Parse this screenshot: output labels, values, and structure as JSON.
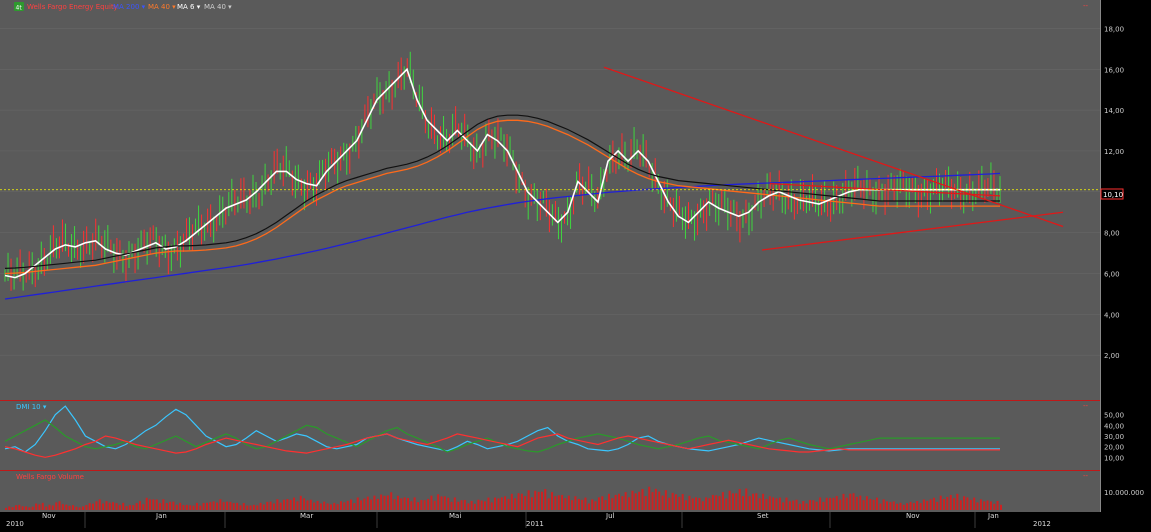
{
  "header": {
    "symbol_icon": "chart-symbol-icon",
    "symbol_text": "4t",
    "title": "Wells Fargo Energy Equity",
    "ma_labels": [
      {
        "label": "MA 200 ▾",
        "color": "#3a55ff"
      },
      {
        "label": "MA 40 ▾",
        "color": "#ff7a2a"
      },
      {
        "label": "MA 6 ▾",
        "color": "#ffffff"
      },
      {
        "label": "MA 40 ▾",
        "color": "#cfcfcf"
      }
    ],
    "corner_marker": "--"
  },
  "dmi_panel": {
    "label": "DMI 10 ▾",
    "corner_marker": "--"
  },
  "volume_panel": {
    "label": "Wells Fargo Volume",
    "corner_marker": "--"
  },
  "price_marker": "10,10",
  "colors": {
    "price_panel_bg": "#5a5a5a",
    "grid": "#6a6a6a",
    "up_bar": "#3fd63f",
    "down_bar": "#ff3030",
    "ma200": "#2020d8",
    "ma40_orange": "#ff6a1a",
    "ma40_black": "#111111",
    "ma6": "#ffffff",
    "trendline": "#e01818",
    "price_line": "#ffff00",
    "dmi_plus": "#2a9a2a",
    "dmi_minus": "#ff3030",
    "adx": "#3ac6ff",
    "volume": "#cc2222",
    "separator": "#c01818"
  },
  "chart_data": [
    {
      "type": "line",
      "title": "Wells Fargo Energy Equity",
      "xlabel": "",
      "ylabel": "",
      "x_labels": [
        "Nov",
        "Jan",
        "Mar",
        "Mai",
        "Jul",
        "Set",
        "Nov",
        "Jan"
      ],
      "year_labels": [
        "2010",
        "2011",
        "2012"
      ],
      "y_ticks": [
        "2,00",
        "4,00",
        "6,00",
        "8,00",
        "10,00",
        "12,00",
        "14,00",
        "16,00",
        "18,00"
      ],
      "ylim": [
        0,
        19
      ],
      "last_price": 10.1,
      "x": [
        0,
        10,
        20,
        30,
        40,
        50,
        60,
        70,
        80,
        90,
        100,
        110,
        120,
        130,
        140,
        150,
        160,
        170,
        180,
        190,
        200,
        210,
        220,
        230,
        240,
        250,
        260,
        270,
        280,
        290,
        300,
        310,
        320,
        330,
        340,
        350,
        360,
        370,
        380,
        390,
        400,
        410,
        420,
        430,
        440,
        450,
        460,
        470,
        480,
        490,
        500,
        510,
        520,
        530,
        540,
        550,
        560,
        570,
        580,
        590,
        600,
        610,
        620,
        630,
        640,
        650,
        660,
        670,
        680,
        690,
        700,
        710,
        720,
        730,
        740,
        750,
        760,
        770,
        780,
        790,
        800,
        810,
        820,
        830,
        840,
        850,
        860,
        870,
        880,
        890,
        900,
        910,
        920,
        930,
        940,
        950,
        960,
        970,
        980,
        990
      ],
      "series": [
        {
          "name": "MA 200",
          "values": [
            4.75,
            4.82,
            4.89,
            4.96,
            5.03,
            5.1,
            5.17,
            5.24,
            5.31,
            5.38,
            5.45,
            5.52,
            5.59,
            5.66,
            5.73,
            5.8,
            5.87,
            5.94,
            6.01,
            6.08,
            6.15,
            6.22,
            6.29,
            6.36,
            6.44,
            6.53,
            6.62,
            6.71,
            6.81,
            6.91,
            7.01,
            7.12,
            7.23,
            7.35,
            7.47,
            7.59,
            7.72,
            7.85,
            7.98,
            8.11,
            8.24,
            8.37,
            8.5,
            8.63,
            8.76,
            8.88,
            9.0,
            9.1,
            9.2,
            9.29,
            9.38,
            9.46,
            9.53,
            9.6,
            9.66,
            9.72,
            9.77,
            9.82,
            9.87,
            9.92,
            9.97,
            10.01,
            10.05,
            10.09,
            10.12,
            10.15,
            10.18,
            10.21,
            10.24,
            10.27,
            10.3,
            10.33,
            10.35,
            10.37,
            10.39,
            10.41,
            10.43,
            10.45,
            10.47,
            10.49,
            10.51,
            10.53,
            10.55,
            10.57,
            10.59,
            10.61,
            10.63,
            10.65,
            10.67,
            10.69,
            10.71,
            10.73,
            10.75,
            10.77,
            10.79,
            10.81,
            10.83,
            10.85,
            10.87,
            10.9
          ]
        },
        {
          "name": "MA 40",
          "values": [
            6.0,
            6.02,
            6.05,
            6.1,
            6.15,
            6.2,
            6.25,
            6.3,
            6.35,
            6.4,
            6.5,
            6.6,
            6.7,
            6.8,
            6.9,
            7.0,
            7.05,
            7.1,
            7.1,
            7.12,
            7.15,
            7.2,
            7.25,
            7.35,
            7.5,
            7.7,
            7.95,
            8.25,
            8.6,
            8.95,
            9.3,
            9.6,
            9.85,
            10.1,
            10.3,
            10.45,
            10.6,
            10.75,
            10.9,
            11.0,
            11.1,
            11.25,
            11.45,
            11.7,
            12.0,
            12.35,
            12.7,
            13.05,
            13.3,
            13.45,
            13.5,
            13.5,
            13.45,
            13.35,
            13.2,
            13.0,
            12.8,
            12.55,
            12.3,
            12.0,
            11.7,
            11.4,
            11.1,
            10.85,
            10.65,
            10.5,
            10.4,
            10.3,
            10.25,
            10.2,
            10.15,
            10.1,
            10.05,
            10.0,
            9.95,
            9.9,
            9.85,
            9.8,
            9.75,
            9.7,
            9.65,
            9.6,
            9.55,
            9.5,
            9.45,
            9.4,
            9.35,
            9.3,
            9.3,
            9.3,
            9.3,
            9.3,
            9.3,
            9.3,
            9.3,
            9.3,
            9.3,
            9.3,
            9.3,
            9.3
          ]
        },
        {
          "name": "MA 6",
          "values": [
            5.9,
            5.8,
            6.0,
            6.4,
            6.8,
            7.2,
            7.4,
            7.3,
            7.5,
            7.6,
            7.2,
            7.0,
            6.9,
            7.1,
            7.3,
            7.5,
            7.2,
            7.3,
            7.6,
            8.0,
            8.4,
            8.8,
            9.2,
            9.4,
            9.6,
            10.0,
            10.5,
            11.0,
            11.0,
            10.6,
            10.4,
            10.3,
            11.0,
            11.5,
            12.0,
            12.5,
            13.5,
            14.5,
            15.0,
            15.5,
            16.0,
            14.5,
            13.5,
            13.0,
            12.5,
            13.0,
            12.5,
            12.0,
            12.8,
            12.5,
            12.0,
            11.0,
            10.0,
            9.5,
            9.0,
            8.5,
            9.0,
            10.5,
            10.0,
            9.5,
            11.5,
            12.0,
            11.5,
            12.0,
            11.5,
            10.5,
            9.5,
            8.8,
            8.5,
            9.0,
            9.5,
            9.2,
            9.0,
            8.8,
            9.0,
            9.5,
            9.8,
            10.0,
            9.8,
            9.6,
            9.5,
            9.4,
            9.6,
            9.8,
            10.0,
            10.1,
            10.1,
            10.1,
            10.1,
            10.1,
            10.1,
            10.1,
            10.1,
            10.1,
            10.1,
            10.1,
            10.1,
            10.1,
            10.1,
            10.1
          ]
        }
      ]
    },
    {
      "type": "line",
      "title": "DMI 10",
      "y_ticks": [
        "10,00",
        "20,00",
        "30,00",
        "40,00",
        "50,00"
      ],
      "ylim": [
        0,
        60
      ],
      "series": [
        {
          "name": "ADX",
          "values": [
            18,
            20,
            15,
            22,
            35,
            50,
            58,
            45,
            30,
            25,
            20,
            18,
            22,
            28,
            35,
            40,
            48,
            55,
            50,
            40,
            30,
            25,
            20,
            22,
            28,
            35,
            30,
            25,
            28,
            32,
            30,
            25,
            20,
            18,
            20,
            22,
            28,
            30,
            32,
            28,
            25,
            22,
            20,
            18,
            16,
            20,
            25,
            22,
            18,
            20,
            22,
            25,
            30,
            35,
            38,
            30,
            25,
            22,
            18,
            17,
            16,
            18,
            22,
            28,
            30,
            25,
            22,
            20,
            18,
            17,
            16,
            18,
            20,
            22,
            25,
            28,
            26,
            24,
            22,
            20,
            18,
            17,
            16,
            17,
            18,
            18,
            18,
            18,
            18,
            18,
            18,
            18,
            18,
            18,
            18,
            18,
            18,
            18,
            18,
            18
          ]
        },
        {
          "name": "DMI+",
          "values": [
            25,
            30,
            35,
            40,
            45,
            38,
            30,
            25,
            20,
            18,
            20,
            22,
            25,
            20,
            18,
            22,
            26,
            30,
            25,
            20,
            24,
            28,
            32,
            28,
            22,
            18,
            20,
            25,
            30,
            35,
            40,
            38,
            32,
            28,
            24,
            20,
            25,
            30,
            35,
            38,
            32,
            28,
            24,
            20,
            15,
            18,
            22,
            25,
            28,
            24,
            20,
            18,
            16,
            15,
            18,
            22,
            25,
            28,
            30,
            32,
            30,
            28,
            25,
            22,
            20,
            18,
            20,
            22,
            25,
            28,
            30,
            26,
            24,
            22,
            20,
            18,
            22,
            26,
            28,
            25,
            22,
            20,
            18,
            20,
            22,
            24,
            26,
            28,
            28,
            28,
            28,
            28,
            28,
            28,
            28,
            28,
            28,
            28,
            28,
            28
          ]
        },
        {
          "name": "DMI-",
          "values": [
            20,
            18,
            15,
            12,
            10,
            12,
            15,
            18,
            22,
            25,
            30,
            28,
            25,
            22,
            20,
            18,
            16,
            14,
            15,
            18,
            22,
            25,
            28,
            26,
            24,
            22,
            20,
            18,
            16,
            15,
            14,
            16,
            18,
            20,
            22,
            25,
            28,
            30,
            32,
            28,
            26,
            24,
            22,
            25,
            28,
            32,
            30,
            28,
            26,
            24,
            22,
            20,
            24,
            28,
            30,
            32,
            28,
            26,
            24,
            22,
            25,
            28,
            30,
            28,
            26,
            24,
            22,
            20,
            18,
            20,
            22,
            24,
            26,
            24,
            22,
            20,
            18,
            17,
            16,
            15,
            15,
            16,
            17,
            18,
            17,
            17,
            17,
            17,
            17,
            17,
            17,
            17,
            17,
            17,
            17,
            17,
            17,
            17,
            17,
            17
          ]
        }
      ]
    },
    {
      "type": "bar",
      "title": "Wells Fargo Volume",
      "y_ticks": [
        "10.000.000"
      ],
      "ylim": [
        0,
        20000000
      ],
      "values": [
        2,
        3,
        2,
        4,
        3,
        5,
        3,
        2,
        4,
        6,
        5,
        4,
        3,
        5,
        7,
        6,
        5,
        4,
        3,
        4,
        5,
        6,
        5,
        4,
        3,
        4,
        5,
        6,
        7,
        8,
        6,
        5,
        4,
        5,
        6,
        7,
        8,
        9,
        10,
        8,
        7,
        6,
        8,
        9,
        7,
        6,
        5,
        6,
        7,
        8,
        9,
        10,
        11,
        12,
        10,
        9,
        8,
        7,
        6,
        8,
        9,
        10,
        11,
        12,
        13,
        11,
        10,
        9,
        8,
        7,
        9,
        10,
        11,
        12,
        10,
        9,
        8,
        7,
        6,
        5,
        6,
        7,
        8,
        9,
        10,
        8,
        7,
        6,
        5,
        4,
        5,
        6,
        7,
        8,
        9,
        8,
        7,
        6,
        5,
        4
      ]
    }
  ]
}
